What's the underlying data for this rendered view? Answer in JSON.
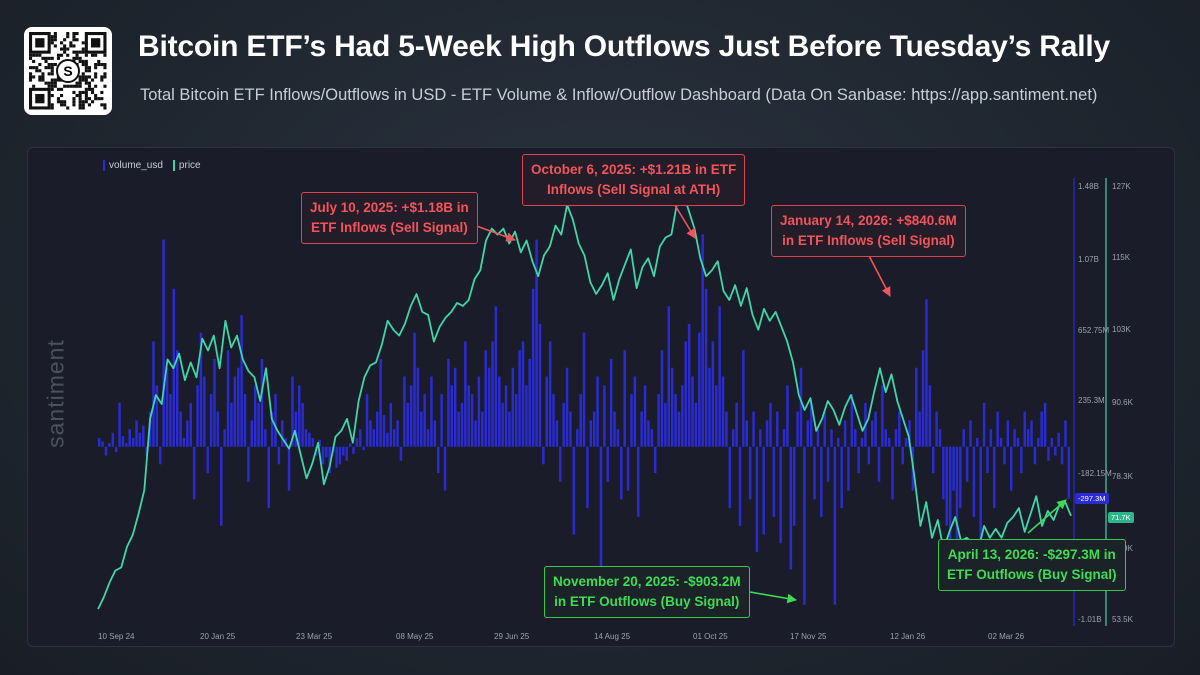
{
  "header": {
    "title": "Bitcoin ETF’s Had 5-Week High Outflows Just Before Tuesday’s Rally",
    "subtitle": "Total Bitcoin ETF Inflows/Outflows in USD - ETF Volume & Inflow/Outflow Dashboard (Data On Sanbase: https://app.santiment.net)"
  },
  "brand": {
    "watermark": "santiment"
  },
  "legend": {
    "volume_label": "volume_usd",
    "price_label": "price"
  },
  "colors": {
    "volume": "#2b2bd6",
    "price": "#3fd6a8",
    "red": "#f2545b",
    "green": "#3ddc53",
    "panel": "#1a1d29"
  },
  "annotations": [
    {
      "id": "jul",
      "text": "July 10, 2025: +$1.18B in\nETF Inflows (Sell Signal)",
      "type": "sell"
    },
    {
      "id": "oct",
      "text": "October 6, 2025: +$1.21B in ETF\nInflows (Sell Signal at ATH)",
      "type": "sell"
    },
    {
      "id": "jan",
      "text": "January 14, 2026: +$840.6M\nin ETF Inflows (Sell Signal)",
      "type": "sell"
    },
    {
      "id": "nov",
      "text": "November 20, 2025: -$903.2M\nin ETF Outflows (Buy Signal)",
      "type": "buy"
    },
    {
      "id": "apr",
      "text": "April 13, 2026: -$297.3M in\nETF Outflows (Buy Signal)",
      "type": "buy"
    }
  ],
  "chart_data": {
    "type": "bar",
    "x_ticks": [
      "10 Sep 24",
      "20 Jan 25",
      "23 Mar 25",
      "08 May 25",
      "29 Jun 25",
      "14 Aug 25",
      "01 Oct 25",
      "17 Nov 25",
      "12 Jan 26",
      "02 Mar 26"
    ],
    "volume_axis": {
      "label": "volume_usd",
      "ticks": [
        "1.48B",
        "1.07B",
        "652.75M",
        "235.3M",
        "-182.15M",
        "-1.01B"
      ],
      "ylim": [
        -1010000000,
        1480000000
      ],
      "current_value_label": "-297.3M"
    },
    "price_axis": {
      "label": "price",
      "ticks": [
        "127K",
        "115K",
        "103K",
        "90.6K",
        "78.3K",
        "65.9K",
        "53.5K"
      ],
      "ylim": [
        53500,
        127000
      ],
      "current_value_label": "71.7K"
    },
    "series": [
      {
        "name": "volume_usd",
        "values": [
          0.05,
          0.03,
          -0.05,
          0.02,
          0.08,
          -0.03,
          0.25,
          0.06,
          0.02,
          0.1,
          0.05,
          0.15,
          0.08,
          0.12,
          -0.05,
          0.2,
          0.6,
          0.35,
          -0.1,
          1.18,
          0.45,
          0.3,
          0.9,
          0.55,
          0.2,
          0.05,
          0.15,
          0.25,
          -0.3,
          0.35,
          0.65,
          0.4,
          -0.15,
          0.3,
          0.5,
          0.2,
          -0.45,
          0.1,
          0.55,
          0.25,
          0.4,
          0.45,
          0.75,
          0.3,
          -0.2,
          0.15,
          0.35,
          0.25,
          0.5,
          0.1,
          -0.35,
          0.2,
          0.3,
          -0.1,
          0.15,
          0.05,
          -0.25,
          0.4,
          0.2,
          0.35,
          0.25,
          0.1,
          0.08,
          0.05,
          -0.05,
          0.04,
          -0.1,
          -0.06,
          -0.15,
          -0.03,
          -0.12,
          -0.1,
          -0.05,
          -0.08,
          0.02,
          -0.04,
          0.05,
          0.1,
          -0.02,
          0.3,
          0.15,
          0.1,
          0.2,
          0.5,
          0.18,
          0.08,
          0.25,
          0.1,
          0.15,
          -0.08,
          0.4,
          0.25,
          0.35,
          0.65,
          0.45,
          0.2,
          0.3,
          0.1,
          0.4,
          0.15,
          -0.15,
          0.3,
          -0.25,
          0.5,
          0.35,
          0.45,
          0.2,
          0.25,
          0.6,
          0.35,
          0.3,
          0.15,
          0.4,
          0.2,
          0.55,
          0.45,
          0.6,
          0.8,
          0.4,
          0.25,
          0.35,
          0.2,
          0.45,
          0.3,
          0.55,
          0.6,
          0.35,
          0.5,
          0.9,
          1.18,
          0.7,
          -0.1,
          0.4,
          0.6,
          0.3,
          0.15,
          -0.2,
          0.25,
          0.45,
          0.2,
          -0.5,
          0.1,
          0.3,
          0.65,
          -0.35,
          0.15,
          0.2,
          0.4,
          -0.8,
          0.35,
          -0.2,
          0.5,
          0.2,
          0.1,
          -0.3,
          0.55,
          -0.25,
          0.3,
          0.4,
          -0.4,
          0.2,
          0.35,
          0.15,
          0.1,
          -0.15,
          0.3,
          0.55,
          0.25,
          0.8,
          0.45,
          0.3,
          0.2,
          0.35,
          0.6,
          0.7,
          0.4,
          0.25,
          0.65,
          1.21,
          0.9,
          0.45,
          0.6,
          0.35,
          0.8,
          0.4,
          0.2,
          -0.35,
          0.1,
          0.25,
          -0.45,
          0.55,
          0.15,
          -0.3,
          0.2,
          -0.6,
          0.1,
          -0.5,
          0.15,
          0.25,
          -0.4,
          0.2,
          -0.55,
          0.1,
          0.35,
          -0.7,
          -0.45,
          0.2,
          0.45,
          -0.9,
          0.15,
          0.25,
          -0.3,
          0.1,
          -0.4,
          0.2,
          -0.2,
          0.1,
          -0.9,
          0.05,
          -0.35,
          0.15,
          -0.25,
          0.3,
          0.1,
          -0.15,
          0.05,
          0.25,
          -0.1,
          0.15,
          0.2,
          -0.2,
          0.35,
          0.1,
          0.05,
          -0.3,
          0.1,
          0.2,
          -0.1,
          0.05,
          0.15,
          -0.25,
          0.45,
          0.2,
          0.55,
          0.84,
          0.35,
          -0.15,
          0.2,
          0.1,
          -0.3,
          -0.45,
          -0.6,
          -0.25,
          -0.8,
          -0.35,
          0.1,
          -0.2,
          0.15,
          -0.4,
          0.05,
          -0.55,
          0.25,
          -0.15,
          0.1,
          -0.35,
          0.2,
          0.05,
          -0.1,
          0.15,
          -0.25,
          0.1,
          0.05,
          -0.15,
          0.2,
          0.1,
          0.15,
          -0.1,
          0.05,
          0.2,
          0.25,
          -0.08,
          0.05,
          -0.05,
          0.08,
          -0.1,
          0.15,
          -0.297
        ]
      },
      {
        "name": "price",
        "values": [
          56000,
          58000,
          60500,
          62500,
          63000,
          66500,
          68500,
          72000,
          76000,
          88000,
          92000,
          90500,
          98000,
          96500,
          99000,
          94500,
          97500,
          95000,
          101500,
          99500,
          102000,
          96500,
          104500,
          100000,
          102000,
          98000,
          96000,
          95000,
          91000,
          96500,
          88000,
          86000,
          84500,
          83000,
          86000,
          82000,
          78000,
          80500,
          84000,
          77000,
          80000,
          85000,
          86000,
          88000,
          84000,
          91000,
          95000,
          97000,
          97500,
          100500,
          104500,
          103000,
          102000,
          104000,
          107000,
          109000,
          106000,
          105500,
          101000,
          103500,
          105000,
          106000,
          107500,
          107000,
          108000,
          111500,
          113000,
          118000,
          120000,
          119000,
          120000,
          117500,
          119500,
          116000,
          118000,
          114500,
          112000,
          115500,
          117000,
          120500,
          119000,
          124000,
          121500,
          117500,
          115500,
          111000,
          109000,
          110500,
          112500,
          108000,
          111500,
          114000,
          116500,
          110000,
          113500,
          115000,
          112000,
          117000,
          118500,
          119000,
          124500,
          126000,
          123000,
          120000,
          115000,
          112000,
          113000,
          114500,
          109500,
          108000,
          110500,
          107000,
          110000,
          105500,
          103000,
          106500,
          104500,
          106000,
          103500,
          101000,
          97500,
          92000,
          89500,
          91500,
          86000,
          88000,
          91000,
          89500,
          87000,
          90000,
          92000,
          89000,
          86000,
          88000,
          92500,
          96500,
          92500,
          95500,
          91000,
          88000,
          85000,
          78000,
          70000,
          74000,
          68000,
          71000,
          66000,
          69000,
          71500,
          67500,
          68000,
          67000,
          66000,
          70000,
          68000,
          69500,
          68000,
          70500,
          71500,
          73000,
          69000,
          72000,
          75000,
          70000,
          72500,
          71000,
          73500,
          74000,
          71700
        ]
      }
    ]
  }
}
